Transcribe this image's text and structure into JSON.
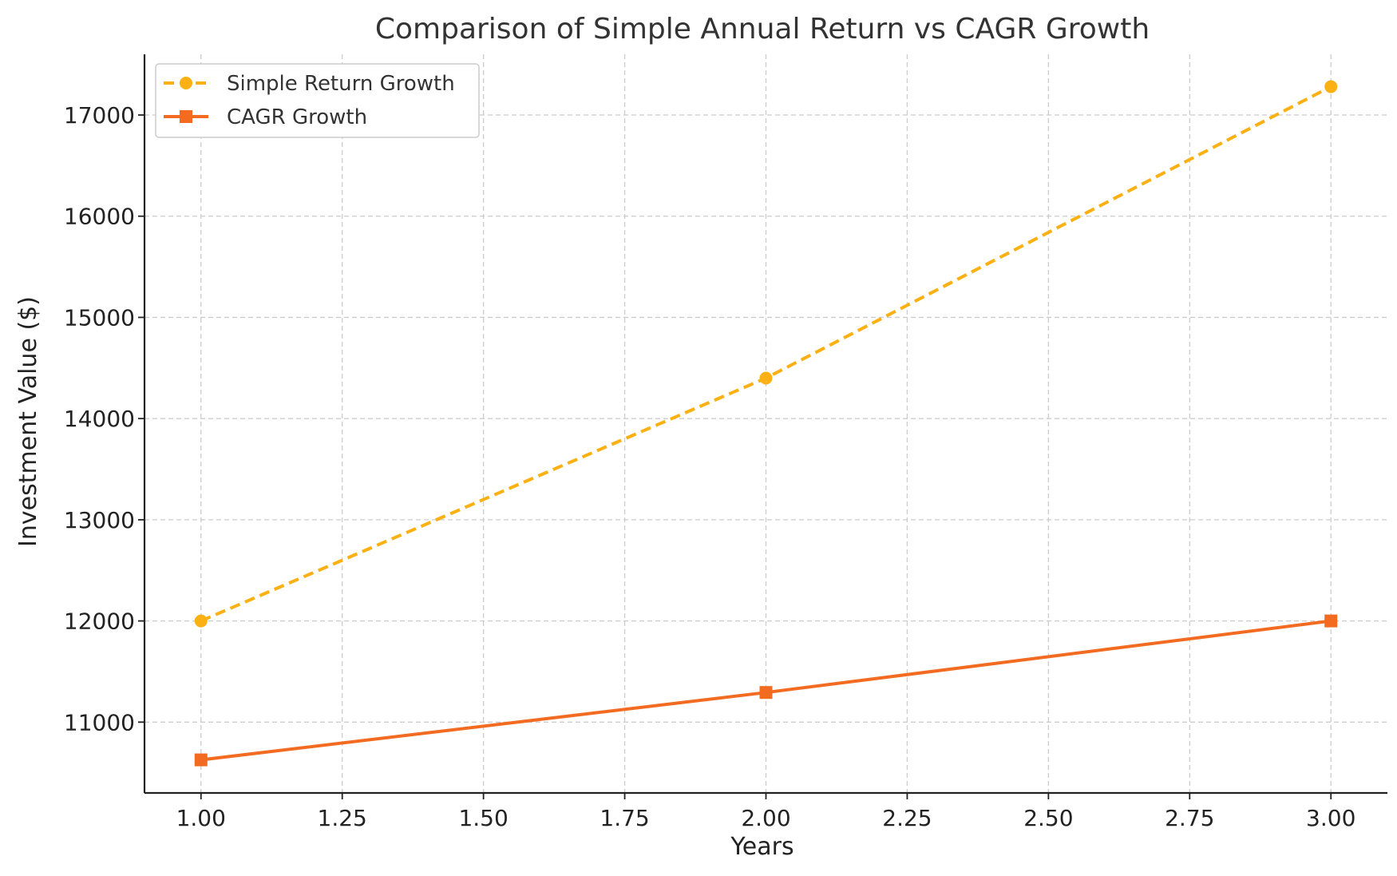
{
  "chart_data": {
    "type": "line",
    "title": "Comparison of Simple Annual Return vs CAGR Growth",
    "xlabel": "Years",
    "ylabel": "Investment Value ($)",
    "xlim": [
      0.9,
      3.1
    ],
    "ylim": [
      10300,
      17600
    ],
    "x": [
      1,
      2,
      3
    ],
    "x_ticks": [
      1.0,
      1.25,
      1.5,
      1.75,
      2.0,
      2.25,
      2.5,
      2.75,
      3.0
    ],
    "x_tick_labels": [
      "1.00",
      "1.25",
      "1.50",
      "1.75",
      "2.00",
      "2.25",
      "2.50",
      "2.75",
      "3.00"
    ],
    "y_ticks": [
      11000,
      12000,
      13000,
      14000,
      15000,
      16000,
      17000
    ],
    "y_tick_labels": [
      "11000",
      "12000",
      "13000",
      "14000",
      "15000",
      "16000",
      "17000"
    ],
    "grid": true,
    "legend_position": "top-left",
    "series": [
      {
        "name": "Simple Return Growth",
        "values": [
          12000,
          14400,
          17280
        ],
        "color": "#FBB013",
        "line_style": "dashed",
        "marker": "circle"
      },
      {
        "name": "CAGR Growth",
        "values": [
          10627,
          11293,
          12000
        ],
        "color": "#F26B21",
        "line_style": "solid",
        "marker": "square"
      }
    ]
  }
}
